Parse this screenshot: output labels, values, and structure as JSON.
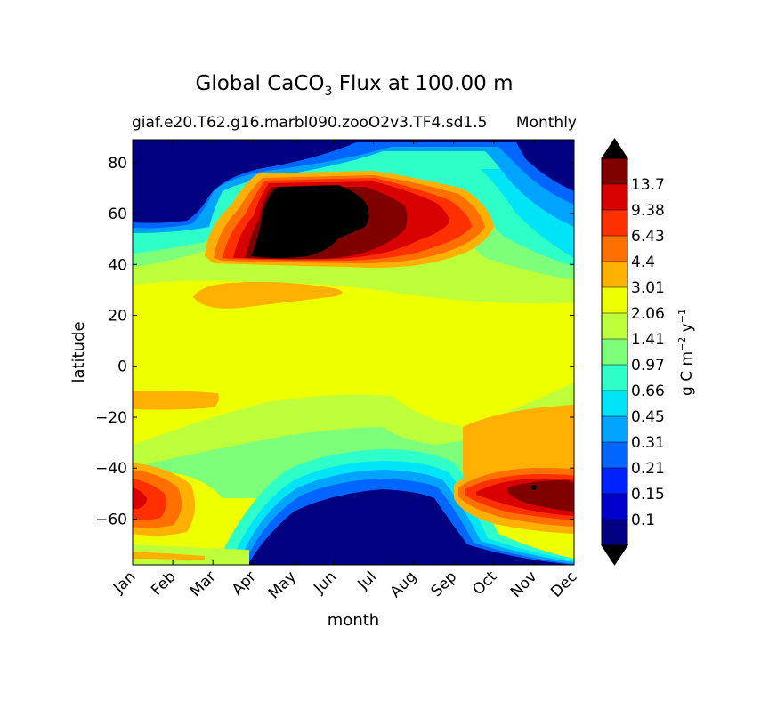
{
  "chart_data": {
    "type": "heatmap",
    "title": {
      "main_prefix": "Global CaCO",
      "main_subscript": "3",
      "main_suffix": " Flux at 100.00 m"
    },
    "subtitle_left": "giaf.e20.T62.g16.marbl090.zooO2v3.TF4.sd1.5",
    "subtitle_right": "Monthly",
    "xlabel": "month",
    "ylabel": "latitude",
    "x_ticks": [
      "Jan",
      "Feb",
      "Mar",
      "Apr",
      "May",
      "Jun",
      "Jul",
      "Aug",
      "Sep",
      "Oct",
      "Nov",
      "Dec"
    ],
    "y_ticks": [
      80,
      60,
      40,
      20,
      0,
      -20,
      -40,
      -60
    ],
    "y_tick_labels": [
      "80",
      "60",
      "40",
      "20",
      "0",
      "−20",
      "−40",
      "−60"
    ],
    "ylim": [
      -78,
      89
    ],
    "xlim": [
      0,
      11
    ],
    "colorbar": {
      "label_prefix": "g C m",
      "label_exp1": "−2",
      "label_mid": " y",
      "label_exp2": "−1",
      "levels": [
        "0.1",
        "0.15",
        "0.21",
        "0.31",
        "0.45",
        "0.66",
        "0.97",
        "1.41",
        "2.06",
        "3.01",
        "4.4",
        "6.43",
        "9.38",
        "13.7"
      ],
      "colors": [
        "#000080",
        "#0000cd",
        "#0022ff",
        "#0066ff",
        "#00a4ff",
        "#00e4f8",
        "#2effc8",
        "#7dff7a",
        "#bcff3a",
        "#eeff00",
        "#ffb000",
        "#ff7000",
        "#ff3000",
        "#d80000",
        "#800000"
      ],
      "extend_low_color": "#000000",
      "extend_high_color": "#000000"
    },
    "regions_description_levels": {
      "north_high_lat_winter": "< 0.1",
      "north_bloom_may_jun_45_70N": "> 13.7",
      "tropics": "2.06-3.01",
      "southern_ocean_winter_60_80S": "< 0.1",
      "southern_bloom_nov_dec_45_55S": "9.38-13.7"
    }
  }
}
